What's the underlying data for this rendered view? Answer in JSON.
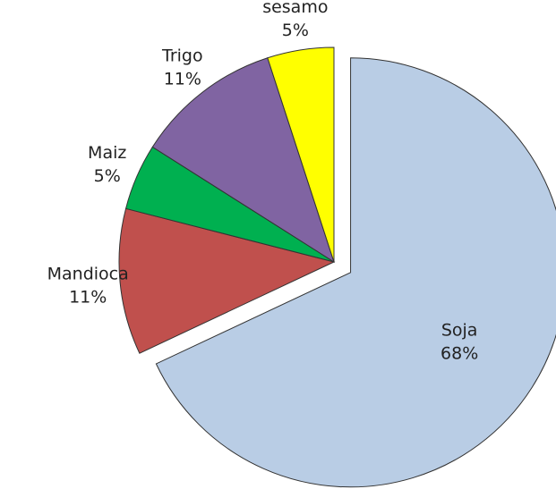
{
  "chart_data": {
    "type": "pie",
    "categories": [
      "Soja",
      "Mandioca",
      "Maiz",
      "Trigo",
      "sesamo"
    ],
    "values": [
      68,
      11,
      5,
      11,
      5
    ],
    "value_labels": [
      "68%",
      "11%",
      "5%",
      "11%",
      "5%"
    ],
    "colors": [
      "#b9cde5",
      "#c0504d",
      "#00b050",
      "#8064a2",
      "#ffff00"
    ],
    "exploded": [
      true,
      false,
      false,
      false,
      false
    ]
  }
}
